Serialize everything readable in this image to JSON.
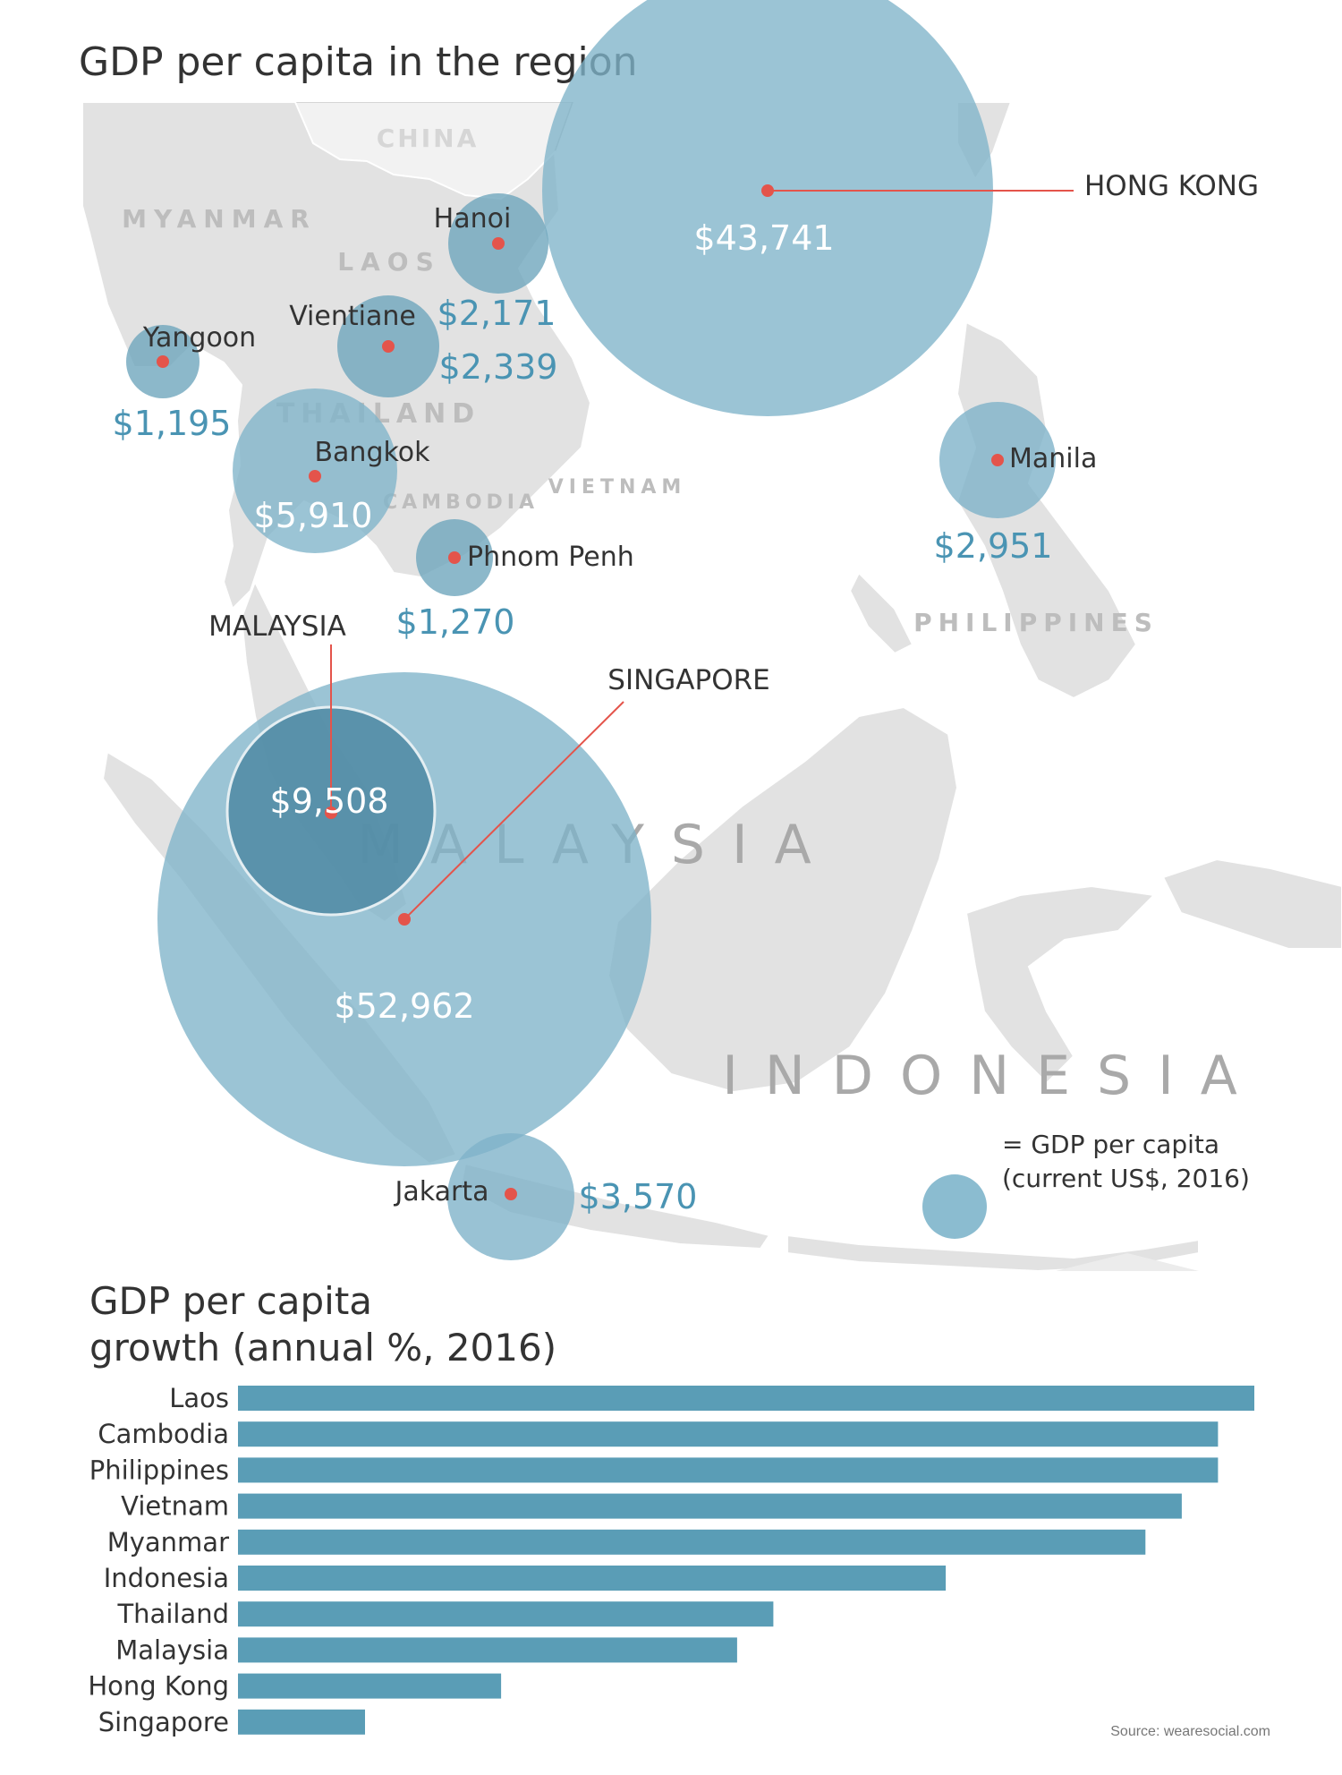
{
  "title": "GDP per capita in the region",
  "country_labels": [
    {
      "key": "china",
      "text": "CHINA"
    },
    {
      "key": "myanmar",
      "text": "MYANMAR"
    },
    {
      "key": "laos",
      "text": "LAOS"
    },
    {
      "key": "thailand",
      "text": "THAILAND"
    },
    {
      "key": "cambodia",
      "text": "CAMBODIA"
    },
    {
      "key": "vietnam",
      "text": "VIETNAM"
    },
    {
      "key": "philippines",
      "text": "PHILIPPINES"
    },
    {
      "key": "malaysia",
      "text": "MALAYSIA"
    },
    {
      "key": "indonesia",
      "text": "INDONESIA"
    }
  ],
  "cities": [
    {
      "key": "hong-kong",
      "name": "HONG KONG",
      "value": "$43,741",
      "gdp": 43741
    },
    {
      "key": "hanoi",
      "name": "Hanoi",
      "value": "$2,171",
      "gdp": 2171
    },
    {
      "key": "vientiane",
      "name": "Vientiane",
      "value": "$2,339",
      "gdp": 2339
    },
    {
      "key": "yangoon",
      "name": "Yangoon",
      "value": "$1,195",
      "gdp": 1195
    },
    {
      "key": "bangkok",
      "name": "Bangkok",
      "value": "$5,910",
      "gdp": 5910
    },
    {
      "key": "phnom-penh",
      "name": "Phnom Penh",
      "value": "$1,270",
      "gdp": 1270
    },
    {
      "key": "manila",
      "name": "Manila",
      "value": "$2,951",
      "gdp": 2951
    },
    {
      "key": "malaysia",
      "name": "MALAYSIA",
      "value": "$9,508",
      "gdp": 9508
    },
    {
      "key": "singapore",
      "name": "SINGAPORE",
      "value": "$52,962",
      "gdp": 52962
    },
    {
      "key": "jakarta",
      "name": "Jakarta",
      "value": "$3,570",
      "gdp": 3570
    }
  ],
  "legend": {
    "line1": "= GDP per capita",
    "line2": "(current US$, 2016)"
  },
  "chart_title": {
    "line1": "GDP per capita",
    "line2": "growth (annual %, 2016)"
  },
  "chart_data": {
    "type": "bar",
    "categories": [
      "Laos",
      "Cambodia",
      "Philippines",
      "Vietnam",
      "Myanmar",
      "Indonesia",
      "Thailand",
      "Malaysia",
      "Hong Kong",
      "Singapore"
    ],
    "values": [
      5.6,
      5.4,
      5.4,
      5.2,
      5.0,
      3.9,
      2.95,
      2.75,
      1.45,
      0.7
    ],
    "title": "GDP per capita growth (annual %, 2016)",
    "xlim": [
      0,
      5.6
    ],
    "bar_color": "#5a9db6",
    "grid": false
  },
  "colors": {
    "bubble": "#8bbcd0",
    "bubble_dark": "#5c94ab",
    "dot": "#e4544b",
    "land": "#e2e2e2",
    "value_text": "#4a94b3"
  },
  "source": "Source: wearesocial.com"
}
